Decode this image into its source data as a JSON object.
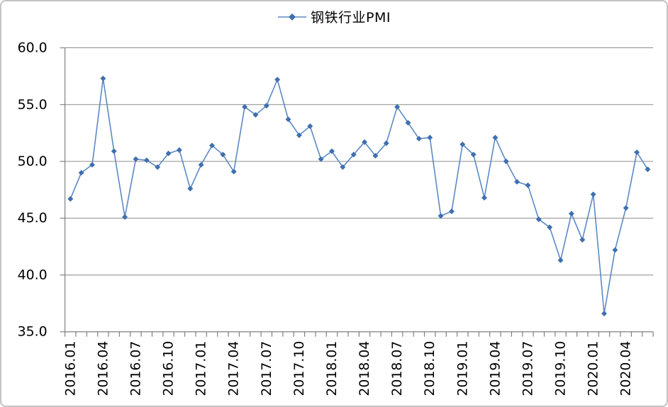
{
  "chart_data": {
    "type": "line",
    "title": "",
    "xlabel": "",
    "ylabel": "",
    "x": [
      "2016.01",
      "2016.02",
      "2016.03",
      "2016.04",
      "2016.05",
      "2016.06",
      "2016.07",
      "2016.08",
      "2016.09",
      "2016.10",
      "2016.11",
      "2016.12",
      "2017.01",
      "2017.02",
      "2017.03",
      "2017.04",
      "2017.05",
      "2017.06",
      "2017.07",
      "2017.08",
      "2017.09",
      "2017.10",
      "2017.11",
      "2017.12",
      "2018.01",
      "2018.02",
      "2018.03",
      "2018.04",
      "2018.05",
      "2018.06",
      "2018.07",
      "2018.08",
      "2018.09",
      "2018.10",
      "2018.11",
      "2018.12",
      "2019.01",
      "2019.02",
      "2019.03",
      "2019.04",
      "2019.05",
      "2019.06",
      "2019.07",
      "2019.08",
      "2019.09",
      "2019.10",
      "2019.11",
      "2019.12",
      "2020.01",
      "2020.02",
      "2020.03",
      "2020.04",
      "2020.05",
      "2020.06"
    ],
    "series": [
      {
        "name": "钢铁行业PMI",
        "marker": "diamond",
        "values": [
          46.7,
          49.0,
          49.7,
          57.3,
          50.9,
          45.1,
          50.2,
          50.1,
          49.5,
          50.7,
          51.0,
          47.6,
          49.7,
          51.4,
          50.6,
          49.1,
          54.8,
          54.1,
          54.9,
          57.2,
          53.7,
          52.3,
          53.1,
          50.2,
          50.9,
          49.5,
          50.6,
          51.7,
          50.5,
          51.6,
          54.8,
          53.4,
          52.0,
          52.1,
          45.2,
          45.6,
          51.5,
          50.6,
          46.8,
          52.1,
          50.0,
          48.2,
          47.9,
          44.9,
          44.2,
          41.3,
          45.4,
          43.1,
          47.1,
          36.6,
          42.2,
          45.9,
          50.8,
          49.3
        ]
      }
    ],
    "ylim": [
      35.0,
      60.0
    ],
    "y_ticks": [
      35.0,
      40.0,
      45.0,
      50.0,
      55.0,
      60.0
    ],
    "y_tick_labels": [
      "35.0",
      "40.0",
      "45.0",
      "50.0",
      "55.0",
      "60.0"
    ],
    "x_tick_label_every": 3,
    "x_tick_labels_shown": [
      "2016.01",
      "2016.04",
      "2016.07",
      "2016.10",
      "2017.01",
      "2017.04",
      "2017.07",
      "2017.10",
      "2018.01",
      "2018.04",
      "2018.07",
      "2018.10",
      "2019.01",
      "2019.04",
      "2019.07",
      "2019.10",
      "2020.01",
      "2020.04"
    ],
    "grid": "horizontal-major",
    "legend_position": "top-center",
    "colors": {
      "line": "#5b89c4",
      "marker": "#3f6fae",
      "grid": "#8c8c8c",
      "axis": "#7f7f7f",
      "text": "#000000",
      "frame_border": "#c3c3c3",
      "background": "#ffffff"
    }
  }
}
